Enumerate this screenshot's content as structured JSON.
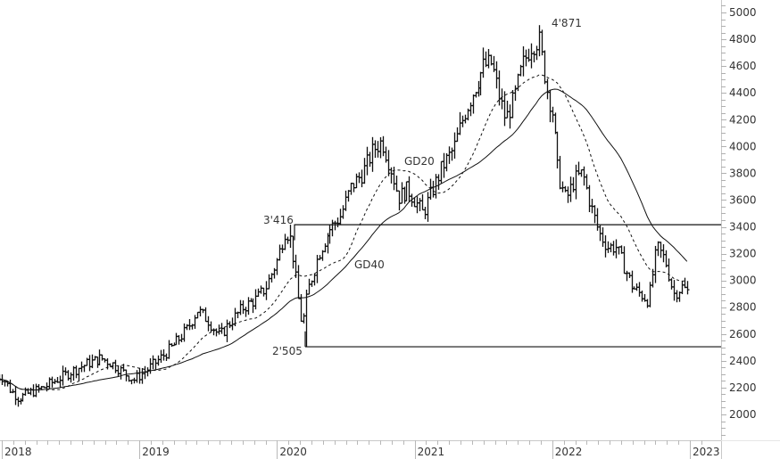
{
  "chart_data": {
    "type": "ohlc",
    "title": "",
    "xlabel": "",
    "ylabel": "",
    "frequency": "weekly",
    "ylim": [
      1850,
      5100
    ],
    "y_ticks": [
      2000,
      2200,
      2400,
      2600,
      2800,
      3000,
      3200,
      3400,
      3600,
      3800,
      4000,
      4200,
      4400,
      4600,
      4800,
      5000
    ],
    "x_ticks": [
      "2018",
      "2019",
      "2020",
      "2021",
      "2022",
      "2023"
    ],
    "grid": false,
    "axis_position": "right",
    "series": [
      {
        "name": "Price (weekly bars)",
        "style": "ohlc-bars"
      },
      {
        "name": "GD20",
        "style": "dashed"
      },
      {
        "name": "GD40",
        "style": "solid"
      }
    ],
    "price_path": [
      [
        2018.0,
        2280
      ],
      [
        2018.06,
        2180
      ],
      [
        2018.12,
        2120
      ],
      [
        2018.2,
        2160
      ],
      [
        2018.3,
        2200
      ],
      [
        2018.4,
        2260
      ],
      [
        2018.5,
        2320
      ],
      [
        2018.62,
        2380
      ],
      [
        2018.72,
        2420
      ],
      [
        2018.8,
        2380
      ],
      [
        2018.9,
        2300
      ],
      [
        2018.96,
        2260
      ],
      [
        2019.05,
        2330
      ],
      [
        2019.15,
        2420
      ],
      [
        2019.25,
        2520
      ],
      [
        2019.35,
        2640
      ],
      [
        2019.42,
        2780
      ],
      [
        2019.5,
        2700
      ],
      [
        2019.58,
        2580
      ],
      [
        2019.65,
        2680
      ],
      [
        2019.75,
        2800
      ],
      [
        2019.85,
        2860
      ],
      [
        2019.92,
        2950
      ],
      [
        2020.0,
        3150
      ],
      [
        2020.06,
        3380
      ],
      [
        2020.1,
        3300
      ],
      [
        2020.14,
        2950
      ],
      [
        2020.18,
        2650
      ],
      [
        2020.22,
        2920
      ],
      [
        2020.3,
        3200
      ],
      [
        2020.38,
        3380
      ],
      [
        2020.46,
        3480
      ],
      [
        2020.54,
        3700
      ],
      [
        2020.62,
        3800
      ],
      [
        2020.7,
        3980
      ],
      [
        2020.76,
        4040
      ],
      [
        2020.82,
        3850
      ],
      [
        2020.88,
        3620
      ],
      [
        2020.95,
        3680
      ],
      [
        2021.0,
        3600
      ],
      [
        2021.06,
        3500
      ],
      [
        2021.12,
        3650
      ],
      [
        2021.2,
        3850
      ],
      [
        2021.28,
        3980
      ],
      [
        2021.36,
        4250
      ],
      [
        2021.44,
        4450
      ],
      [
        2021.5,
        4600
      ],
      [
        2021.56,
        4620
      ],
      [
        2021.62,
        4350
      ],
      [
        2021.66,
        4200
      ],
      [
        2021.72,
        4350
      ],
      [
        2021.78,
        4600
      ],
      [
        2021.84,
        4750
      ],
      [
        2021.9,
        4800
      ],
      [
        2021.96,
        4420
      ],
      [
        2022.0,
        4250
      ],
      [
        2022.04,
        3800
      ],
      [
        2022.1,
        3600
      ],
      [
        2022.16,
        3750
      ],
      [
        2022.22,
        3800
      ],
      [
        2022.28,
        3550
      ],
      [
        2022.34,
        3350
      ],
      [
        2022.4,
        3250
      ],
      [
        2022.46,
        3250
      ],
      [
        2022.52,
        3100
      ],
      [
        2022.58,
        2950
      ],
      [
        2022.64,
        2900
      ],
      [
        2022.7,
        2850
      ],
      [
        2022.76,
        3250
      ],
      [
        2022.82,
        3150
      ],
      [
        2022.88,
        2900
      ],
      [
        2022.94,
        2950
      ],
      [
        2023.0,
        2900
      ]
    ],
    "annotations": [
      {
        "text": "4'871",
        "value": 4871,
        "type": "high"
      },
      {
        "text": "3'416",
        "value": 3416,
        "type": "horizontal-line"
      },
      {
        "text": "2'505",
        "value": 2505,
        "type": "horizontal-line"
      },
      {
        "text": "GD20",
        "type": "series-label"
      },
      {
        "text": "GD40",
        "type": "series-label"
      }
    ]
  },
  "labels": {
    "high": "4'871",
    "resistance": "3'416",
    "support": "2'505",
    "gd20": "GD20",
    "gd40": "GD40"
  }
}
